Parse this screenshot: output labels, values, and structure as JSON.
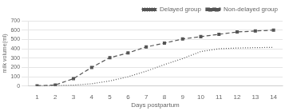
{
  "chart_data": {
    "type": "line",
    "x": [
      1,
      2,
      3,
      4,
      5,
      6,
      7,
      8,
      9,
      10,
      11,
      12,
      13,
      14
    ],
    "series": [
      {
        "name": "Non-delayed group",
        "color": "#555555",
        "line_style": "dashed",
        "marker": "square",
        "values": [
          3,
          12,
          80,
          200,
          305,
          355,
          420,
          460,
          505,
          530,
          555,
          580,
          590,
          600
        ]
      },
      {
        "name": "Delayed group",
        "color": "#555555",
        "line_style": "dotted",
        "marker": "none",
        "values": [
          1,
          5,
          10,
          25,
          55,
          100,
          160,
          230,
          295,
          370,
          400,
          408,
          412,
          415
        ]
      }
    ],
    "xlabel": "Days postpartum",
    "ylabel": "milk volume(ml)",
    "xlim": [
      0.5,
      14.5
    ],
    "xticks": [
      1,
      2,
      3,
      4,
      5,
      6,
      7,
      8,
      9,
      10,
      11,
      12,
      13,
      14
    ],
    "ylim": [
      0,
      700
    ],
    "yticks": [
      0,
      100,
      200,
      300,
      400,
      500,
      600,
      700
    ],
    "grid": "y",
    "legend": "top"
  }
}
